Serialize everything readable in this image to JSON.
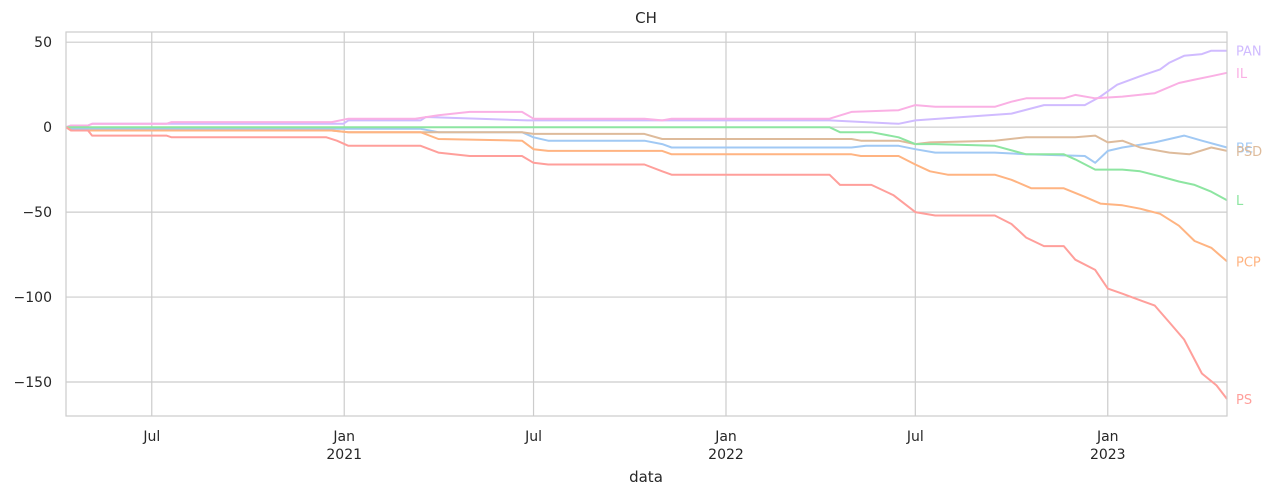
{
  "chart_data": {
    "type": "line",
    "title": "CH",
    "xlabel": "data",
    "ylabel": "",
    "ylim": [
      -170,
      56
    ],
    "xlim": [
      "2020-04-10",
      "2023-04-25"
    ],
    "grid": true,
    "yticks": [
      {
        "value": 50,
        "label": "50"
      },
      {
        "value": 0,
        "label": "0"
      },
      {
        "value": -50,
        "label": "−50"
      },
      {
        "value": -100,
        "label": "−100"
      },
      {
        "value": -150,
        "label": "−150"
      }
    ],
    "xticks": [
      {
        "date": "2020-07-01",
        "label": "Jul",
        "year": ""
      },
      {
        "date": "2021-01-01",
        "label": "Jan",
        "year": "2021"
      },
      {
        "date": "2021-07-01",
        "label": "Jul",
        "year": ""
      },
      {
        "date": "2022-01-01",
        "label": "Jan",
        "year": "2022"
      },
      {
        "date": "2022-07-01",
        "label": "Jul",
        "year": ""
      },
      {
        "date": "2023-01-01",
        "label": "Jan",
        "year": "2023"
      }
    ],
    "series": [
      {
        "name": "PAN",
        "color": "#d0bbff",
        "points": [
          [
            "2020-04-10",
            0
          ],
          [
            "2020-04-15",
            1
          ],
          [
            "2020-05-01",
            1
          ],
          [
            "2020-05-05",
            2
          ],
          [
            "2020-12-31",
            2
          ],
          [
            "2021-01-05",
            4
          ],
          [
            "2021-03-15",
            4
          ],
          [
            "2021-03-20",
            6
          ],
          [
            "2021-06-25",
            4
          ],
          [
            "2022-04-10",
            4
          ],
          [
            "2022-06-15",
            2
          ],
          [
            "2022-07-01",
            4
          ],
          [
            "2022-10-01",
            8
          ],
          [
            "2022-11-01",
            13
          ],
          [
            "2022-12-10",
            13
          ],
          [
            "2022-12-25",
            18
          ],
          [
            "2023-01-10",
            25
          ],
          [
            "2023-02-01",
            30
          ],
          [
            "2023-02-20",
            34
          ],
          [
            "2023-03-01",
            38
          ],
          [
            "2023-03-15",
            42
          ],
          [
            "2023-04-01",
            43
          ],
          [
            "2023-04-10",
            45
          ],
          [
            "2023-04-25",
            45
          ]
        ]
      },
      {
        "name": "IL",
        "color": "#fab0e4",
        "points": [
          [
            "2020-04-10",
            0
          ],
          [
            "2020-04-15",
            1
          ],
          [
            "2020-05-01",
            1
          ],
          [
            "2020-05-05",
            2
          ],
          [
            "2020-07-15",
            2
          ],
          [
            "2020-07-20",
            3
          ],
          [
            "2020-12-20",
            3
          ],
          [
            "2021-01-05",
            5
          ],
          [
            "2021-03-10",
            5
          ],
          [
            "2021-04-01",
            7
          ],
          [
            "2021-05-01",
            9
          ],
          [
            "2021-06-20",
            9
          ],
          [
            "2021-07-01",
            5
          ],
          [
            "2021-10-15",
            5
          ],
          [
            "2021-11-01",
            4
          ],
          [
            "2021-11-10",
            5
          ],
          [
            "2022-04-10",
            5
          ],
          [
            "2022-05-01",
            9
          ],
          [
            "2022-06-15",
            10
          ],
          [
            "2022-07-01",
            13
          ],
          [
            "2022-07-20",
            12
          ],
          [
            "2022-09-15",
            12
          ],
          [
            "2022-10-01",
            15
          ],
          [
            "2022-10-15",
            17
          ],
          [
            "2022-11-20",
            17
          ],
          [
            "2022-12-01",
            19
          ],
          [
            "2022-12-20",
            17
          ],
          [
            "2023-01-15",
            18
          ],
          [
            "2023-02-15",
            20
          ],
          [
            "2023-03-10",
            26
          ],
          [
            "2023-03-25",
            28
          ],
          [
            "2023-04-10",
            30
          ],
          [
            "2023-04-25",
            32
          ]
        ]
      },
      {
        "name": "BE",
        "color": "#a1c9f4",
        "points": [
          [
            "2020-04-10",
            0
          ],
          [
            "2020-04-15",
            -1
          ],
          [
            "2020-12-31",
            -1
          ],
          [
            "2021-01-05",
            -1
          ],
          [
            "2021-03-15",
            -1
          ],
          [
            "2021-04-01",
            -3
          ],
          [
            "2021-06-20",
            -3
          ],
          [
            "2021-07-01",
            -6
          ],
          [
            "2021-07-15",
            -8
          ],
          [
            "2021-10-15",
            -8
          ],
          [
            "2021-11-01",
            -10
          ],
          [
            "2021-11-10",
            -12
          ],
          [
            "2022-05-01",
            -12
          ],
          [
            "2022-05-15",
            -11
          ],
          [
            "2022-06-15",
            -11
          ],
          [
            "2022-07-01",
            -13
          ],
          [
            "2022-07-20",
            -15
          ],
          [
            "2022-09-15",
            -15
          ],
          [
            "2022-10-15",
            -16
          ],
          [
            "2022-12-10",
            -17
          ],
          [
            "2022-12-20",
            -21
          ],
          [
            "2023-01-01",
            -14
          ],
          [
            "2023-01-15",
            -12
          ],
          [
            "2023-02-15",
            -9
          ],
          [
            "2023-03-01",
            -7
          ],
          [
            "2023-03-15",
            -5
          ],
          [
            "2023-04-01",
            -8
          ],
          [
            "2023-04-25",
            -12
          ]
        ]
      },
      {
        "name": "PSD",
        "color": "#debb9b",
        "points": [
          [
            "2020-04-10",
            0
          ],
          [
            "2020-04-15",
            -2
          ],
          [
            "2020-12-20",
            -2
          ],
          [
            "2021-01-05",
            -3
          ],
          [
            "2021-06-20",
            -3
          ],
          [
            "2021-07-01",
            -4
          ],
          [
            "2021-10-15",
            -4
          ],
          [
            "2021-11-01",
            -7
          ],
          [
            "2022-05-01",
            -7
          ],
          [
            "2022-05-10",
            -8
          ],
          [
            "2022-06-15",
            -8
          ],
          [
            "2022-07-01",
            -10
          ],
          [
            "2022-07-15",
            -9
          ],
          [
            "2022-09-15",
            -8
          ],
          [
            "2022-10-15",
            -6
          ],
          [
            "2022-12-01",
            -6
          ],
          [
            "2022-12-20",
            -5
          ],
          [
            "2023-01-01",
            -9
          ],
          [
            "2023-01-15",
            -8
          ],
          [
            "2023-02-01",
            -12
          ],
          [
            "2023-03-01",
            -15
          ],
          [
            "2023-03-20",
            -16
          ],
          [
            "2023-04-10",
            -12
          ],
          [
            "2023-04-25",
            -14
          ]
        ]
      },
      {
        "name": "L",
        "color": "#8de5a1",
        "points": [
          [
            "2020-04-10",
            0
          ],
          [
            "2022-04-10",
            0
          ],
          [
            "2022-04-20",
            -3
          ],
          [
            "2022-05-20",
            -3
          ],
          [
            "2022-06-15",
            -6
          ],
          [
            "2022-07-01",
            -10
          ],
          [
            "2022-07-20",
            -10
          ],
          [
            "2022-09-15",
            -11
          ],
          [
            "2022-10-15",
            -16
          ],
          [
            "2022-11-20",
            -16
          ],
          [
            "2022-12-01",
            -19
          ],
          [
            "2022-12-20",
            -25
          ],
          [
            "2023-01-15",
            -25
          ],
          [
            "2023-02-01",
            -26
          ],
          [
            "2023-02-20",
            -29
          ],
          [
            "2023-03-10",
            -32
          ],
          [
            "2023-03-25",
            -34
          ],
          [
            "2023-04-10",
            -38
          ],
          [
            "2023-04-25",
            -43
          ]
        ]
      },
      {
        "name": "PCP",
        "color": "#ffb482",
        "points": [
          [
            "2020-04-10",
            0
          ],
          [
            "2020-04-15",
            -2
          ],
          [
            "2020-12-20",
            -2
          ],
          [
            "2021-01-05",
            -3
          ],
          [
            "2021-03-15",
            -3
          ],
          [
            "2021-04-01",
            -7
          ],
          [
            "2021-06-20",
            -8
          ],
          [
            "2021-07-01",
            -13
          ],
          [
            "2021-07-15",
            -14
          ],
          [
            "2021-11-01",
            -14
          ],
          [
            "2021-11-10",
            -16
          ],
          [
            "2022-05-01",
            -16
          ],
          [
            "2022-05-10",
            -17
          ],
          [
            "2022-06-15",
            -17
          ],
          [
            "2022-07-01",
            -22
          ],
          [
            "2022-07-15",
            -26
          ],
          [
            "2022-08-01",
            -28
          ],
          [
            "2022-09-15",
            -28
          ],
          [
            "2022-10-01",
            -31
          ],
          [
            "2022-10-20",
            -36
          ],
          [
            "2022-11-20",
            -36
          ],
          [
            "2022-12-10",
            -41
          ],
          [
            "2022-12-25",
            -45
          ],
          [
            "2023-01-15",
            -46
          ],
          [
            "2023-02-01",
            -48
          ],
          [
            "2023-02-20",
            -51
          ],
          [
            "2023-03-10",
            -58
          ],
          [
            "2023-03-25",
            -67
          ],
          [
            "2023-04-10",
            -71
          ],
          [
            "2023-04-25",
            -79
          ]
        ]
      },
      {
        "name": "PS",
        "color": "#ff9f9b",
        "points": [
          [
            "2020-04-10",
            0
          ],
          [
            "2020-04-15",
            -2
          ],
          [
            "2020-05-01",
            -2
          ],
          [
            "2020-05-05",
            -5
          ],
          [
            "2020-07-15",
            -5
          ],
          [
            "2020-07-20",
            -6
          ],
          [
            "2020-12-15",
            -6
          ],
          [
            "2020-12-25",
            -8
          ],
          [
            "2021-01-05",
            -11
          ],
          [
            "2021-03-15",
            -11
          ],
          [
            "2021-04-01",
            -15
          ],
          [
            "2021-05-01",
            -17
          ],
          [
            "2021-06-20",
            -17
          ],
          [
            "2021-07-01",
            -21
          ],
          [
            "2021-07-15",
            -22
          ],
          [
            "2021-10-15",
            -22
          ],
          [
            "2021-11-01",
            -26
          ],
          [
            "2021-11-10",
            -28
          ],
          [
            "2022-04-10",
            -28
          ],
          [
            "2022-04-20",
            -34
          ],
          [
            "2022-05-20",
            -34
          ],
          [
            "2022-06-10",
            -40
          ],
          [
            "2022-07-01",
            -50
          ],
          [
            "2022-07-20",
            -52
          ],
          [
            "2022-09-15",
            -52
          ],
          [
            "2022-10-01",
            -57
          ],
          [
            "2022-10-15",
            -65
          ],
          [
            "2022-11-01",
            -70
          ],
          [
            "2022-11-20",
            -70
          ],
          [
            "2022-12-01",
            -78
          ],
          [
            "2022-12-20",
            -84
          ],
          [
            "2023-01-01",
            -95
          ],
          [
            "2023-01-15",
            -98
          ],
          [
            "2023-02-15",
            -105
          ],
          [
            "2023-03-01",
            -115
          ],
          [
            "2023-03-15",
            -125
          ],
          [
            "2023-04-01",
            -145
          ],
          [
            "2023-04-15",
            -152
          ],
          [
            "2023-04-25",
            -160
          ]
        ]
      }
    ]
  }
}
